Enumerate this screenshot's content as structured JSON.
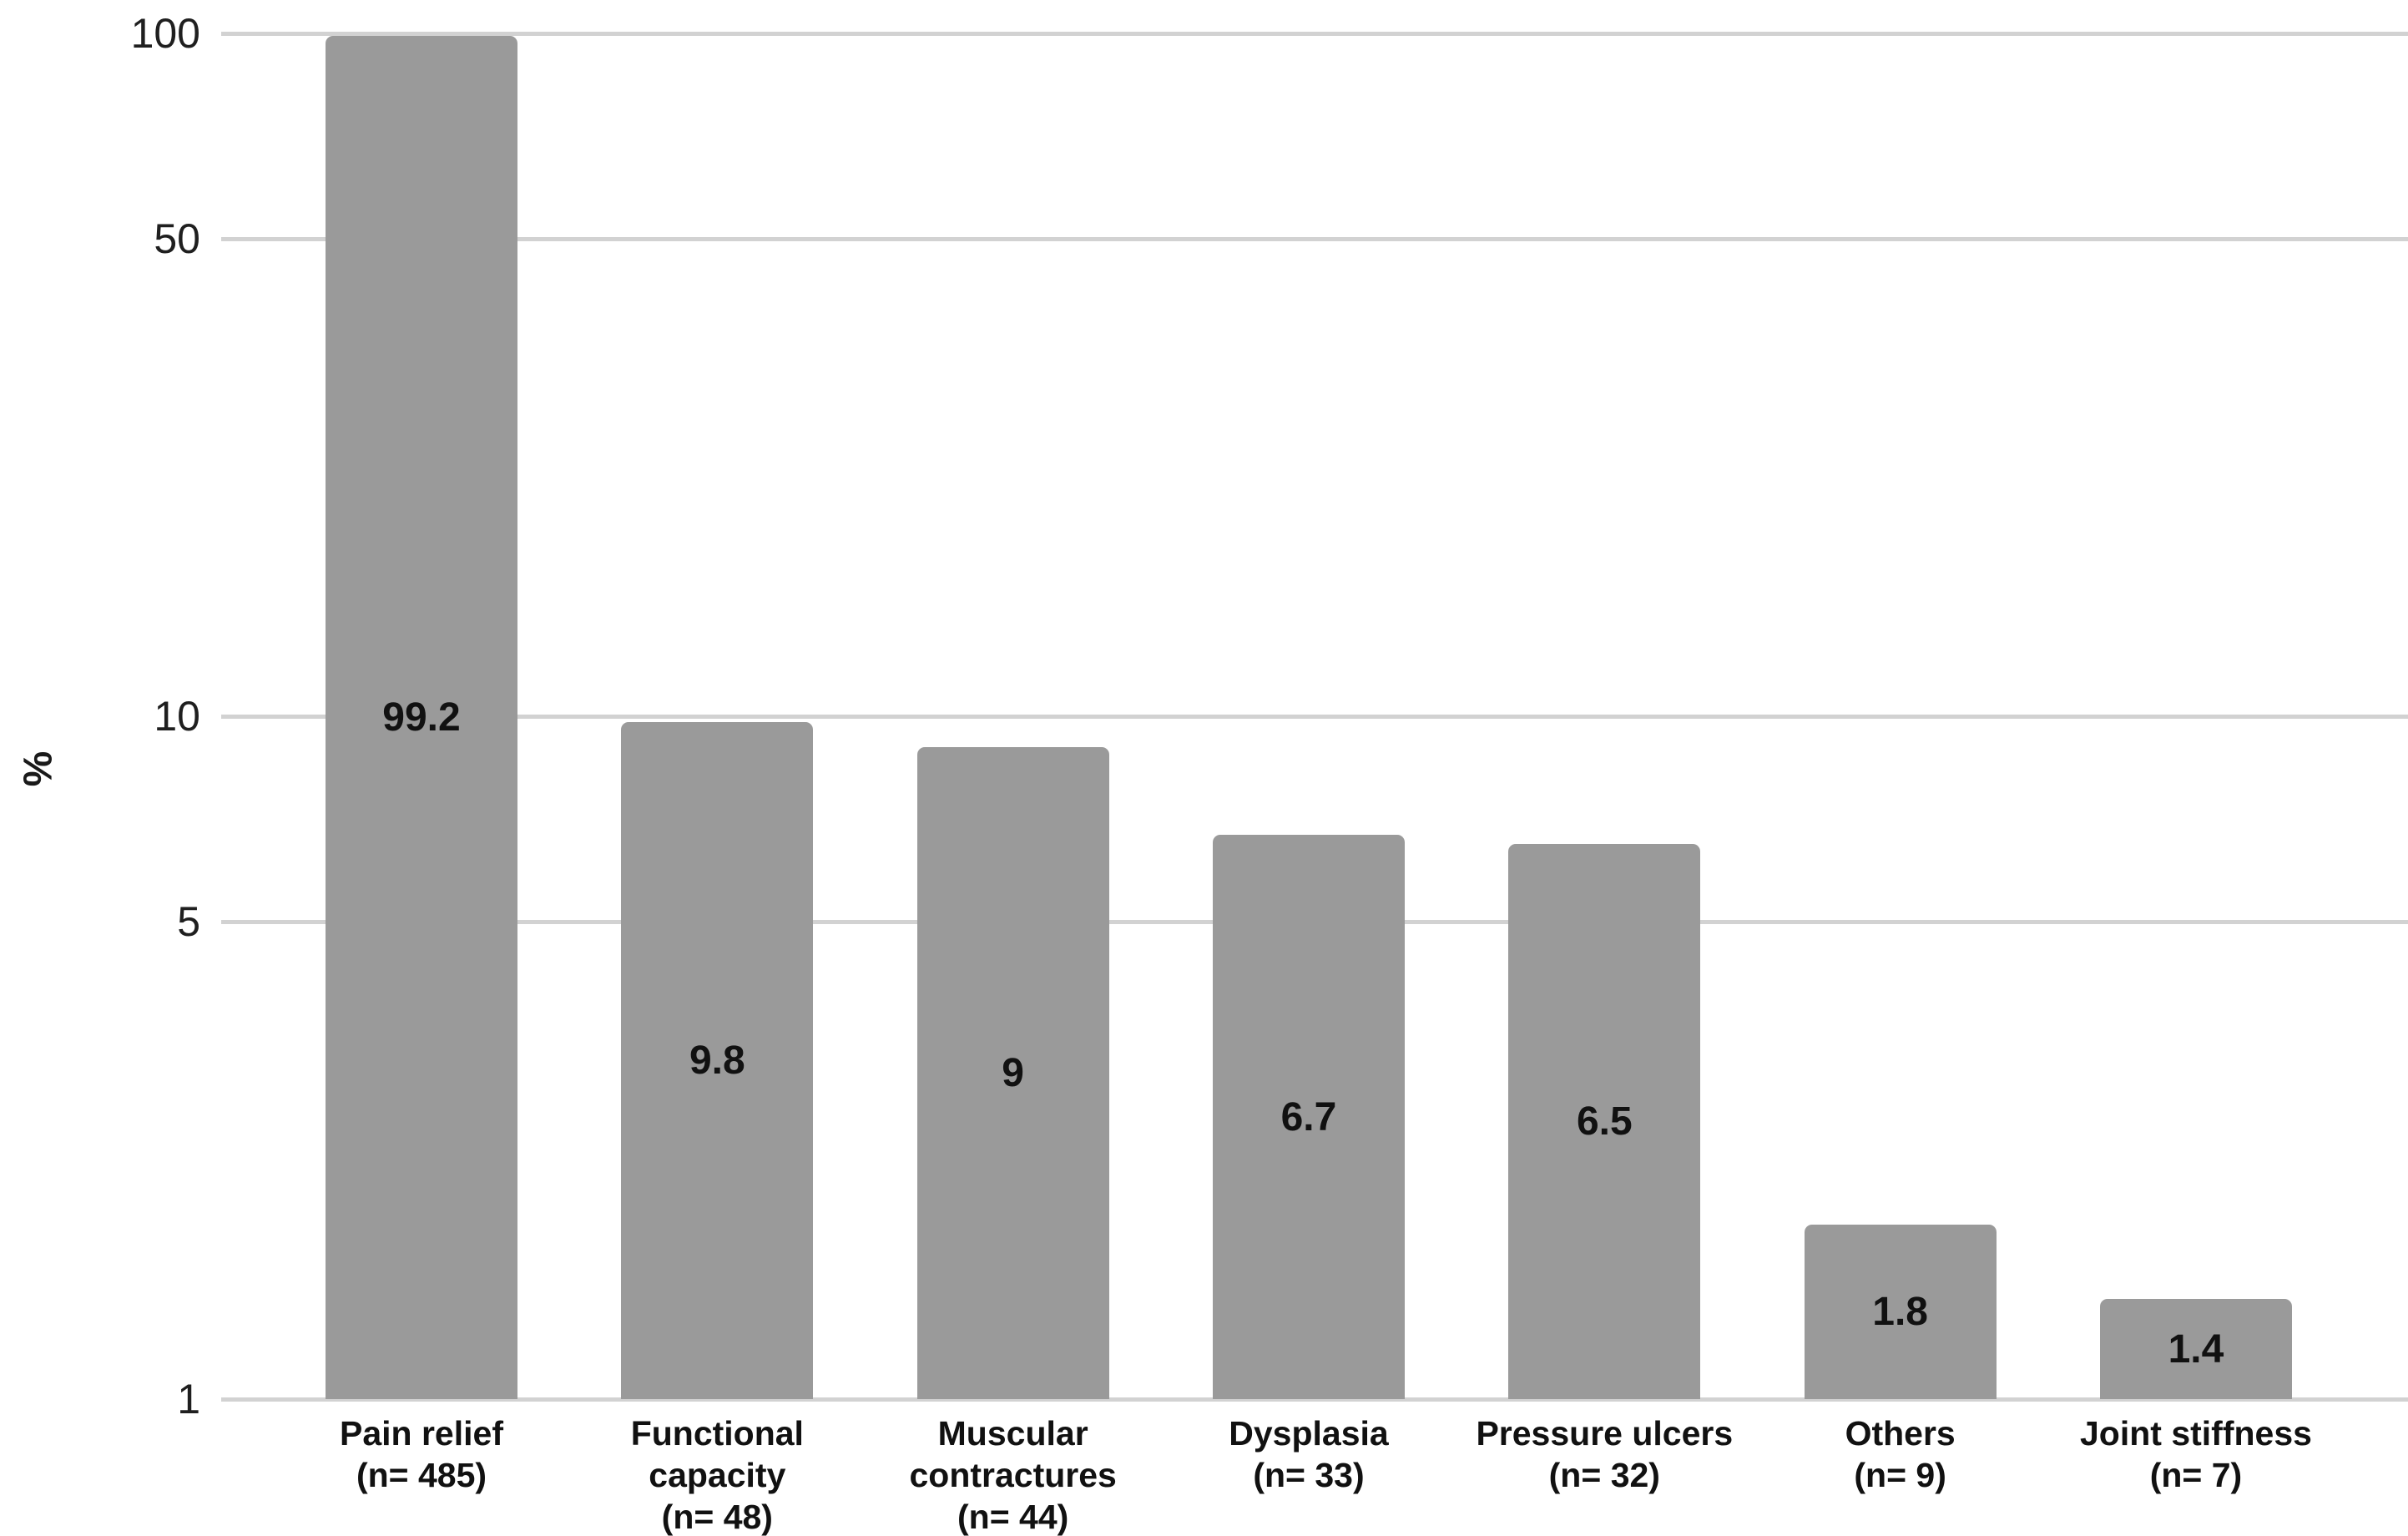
{
  "chart_data": {
    "type": "bar",
    "title": "",
    "xlabel": "",
    "ylabel": "%",
    "y_scale": "log",
    "ylim": [
      1,
      100
    ],
    "grid": true,
    "legend": "none",
    "background_color": "#ffffff",
    "bar_color": "#9a9a9a",
    "gridline_color": "#d2d2d2",
    "text_color": "#111111",
    "yticks": [
      {
        "value": 100,
        "label": "100"
      },
      {
        "value": 50,
        "label": "50"
      },
      {
        "value": 10,
        "label": "10"
      },
      {
        "value": 5,
        "label": "5"
      },
      {
        "value": 1,
        "label": "1"
      }
    ],
    "categories": [
      {
        "name": "Pain relief",
        "n": 485,
        "label_lines": [
          "Pain relief",
          "(n= 485)"
        ]
      },
      {
        "name": "Functional capacity",
        "n": 48,
        "label_lines": [
          "Functional",
          "capacity",
          "(n= 48)"
        ]
      },
      {
        "name": "Muscular contractures",
        "n": 44,
        "label_lines": [
          "Muscular",
          "contractures",
          "(n= 44)"
        ]
      },
      {
        "name": "Dysplasia",
        "n": 33,
        "label_lines": [
          "Dysplasia",
          "(n= 33)"
        ]
      },
      {
        "name": "Pressure ulcers",
        "n": 32,
        "label_lines": [
          "Pressure ulcers",
          "(n= 32)"
        ]
      },
      {
        "name": "Others",
        "n": 9,
        "label_lines": [
          "Others",
          "(n= 9)"
        ]
      },
      {
        "name": "Joint stiffness",
        "n": 7,
        "label_lines": [
          "Joint stiffness",
          "(n= 7)"
        ]
      }
    ],
    "values": [
      99.2,
      9.8,
      9,
      6.7,
      6.5,
      1.8,
      1.4
    ],
    "value_labels": [
      "99.2",
      "9.8",
      "9",
      "6.7",
      "6.5",
      "1.8",
      "1.4"
    ]
  }
}
